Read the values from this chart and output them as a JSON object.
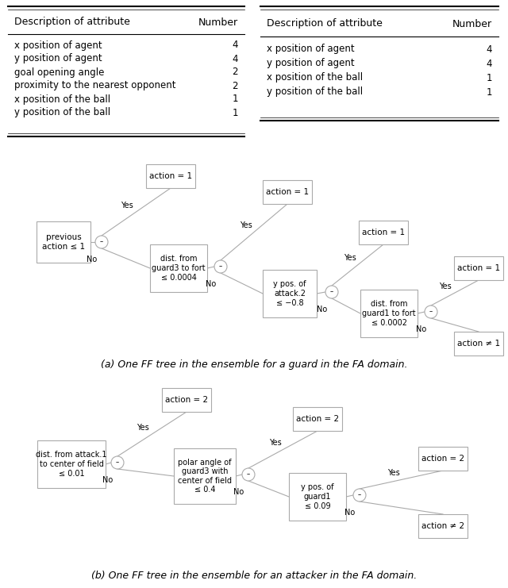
{
  "table1": {
    "headers": [
      "Description of attribute",
      "Number"
    ],
    "rows": [
      [
        "x position of agent",
        "4"
      ],
      [
        "y position of agent",
        "4"
      ],
      [
        "goal opening angle",
        "2"
      ],
      [
        "proximity to the nearest opponent",
        "2"
      ],
      [
        "x position of the ball",
        "1"
      ],
      [
        "y position of the ball",
        "1"
      ]
    ]
  },
  "table2": {
    "headers": [
      "Description of attribute",
      "Number"
    ],
    "rows": [
      [
        "x position of agent",
        "4"
      ],
      [
        "y position of agent",
        "4"
      ],
      [
        "x position of the ball",
        "1"
      ],
      [
        "y position of the ball",
        "1"
      ]
    ]
  },
  "tree1_caption": "(a) One FF tree in the ensemble for a guard in the FA domain.",
  "tree2_caption": "(b) One FF tree in the ensemble for an attacker in the FA domain.",
  "bg_color": "#ffffff",
  "box_edge_color": "#aaaaaa",
  "line_color": "#aaaaaa",
  "text_color": "#000000"
}
